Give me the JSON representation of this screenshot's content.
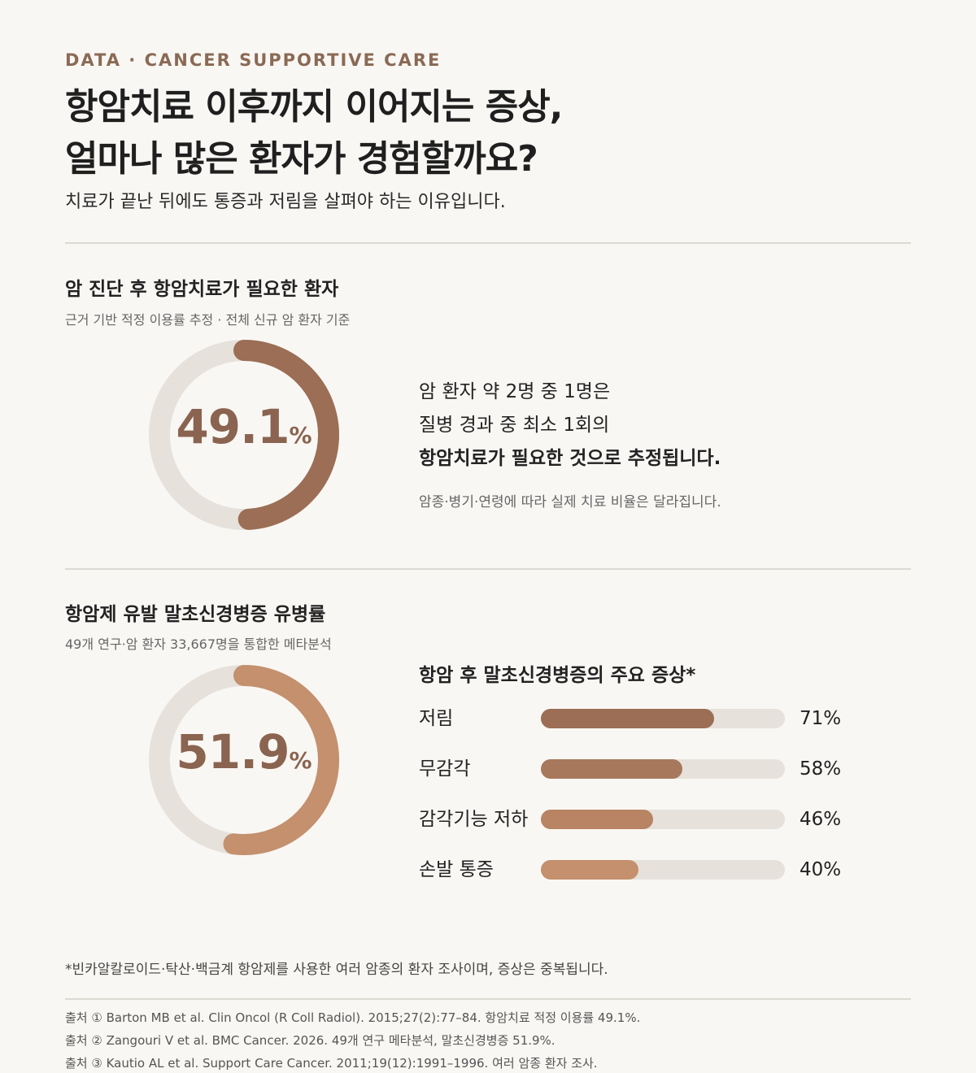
{
  "header": {
    "eyebrow": "DATA · CANCER SUPPORTIVE CARE",
    "title_line1": "항암치료 이후까지 이어지는 증상,",
    "title_line2": "얼마나 많은 환자가 경험할까요?",
    "subtitle": "치료가 끝난 뒤에도 통증과 저림을 살펴야 하는 이유입니다."
  },
  "section1": {
    "title": "암 진단 후 항암치료가 필요한 환자",
    "subtitle": "근거 기반 적정 이용률 추정 · 전체 신규 암 환자 기준",
    "value": "49.1",
    "unit": "%",
    "desc_line1": "암 환자 약 2명 중 1명은",
    "desc_line2": "질병 경과 중 최소 1회의",
    "desc_line3": "항암치료가 필요한 것으로 추정됩니다.",
    "note": "암종·병기·연령에 따라 실제 치료 비율은 달라집니다."
  },
  "section2": {
    "title": "항암제 유발 말초신경병증 유병률",
    "subtitle": "49개 연구·암 환자 33,667명을 통합한 메타분석",
    "value": "51.9",
    "unit": "%",
    "bars_title": "항암 후 말초신경병증의 주요 증상*"
  },
  "chart_data": [
    {
      "type": "pie",
      "values": [
        49.1,
        50.9
      ],
      "value_label": "49.1%",
      "colors": [
        "#9b6e55",
        "#e6e1db"
      ]
    },
    {
      "type": "pie",
      "values": [
        51.9,
        48.1
      ],
      "value_label": "51.9%",
      "colors": [
        "#c4906d",
        "#e6e1db"
      ]
    },
    {
      "type": "bar",
      "title": "항암 후 말초신경병증의 주요 증상*",
      "categories": [
        "저림",
        "무감각",
        "감각기능 저하",
        "손발 통증"
      ],
      "values": [
        71,
        58,
        46,
        40
      ],
      "value_labels": [
        "71%",
        "58%",
        "46%",
        "40%"
      ],
      "ylim": [
        0,
        100
      ],
      "colors": [
        "#9b6e55",
        "#a8785c",
        "#b88464",
        "#c4906d"
      ]
    }
  ],
  "footnote": "*빈카알칼로이드·탁산·백금계 항암제를 사용한 여러 암종의 환자 조사이며, 증상은 중복됩니다.",
  "sources": [
    "출처 ① Barton MB et al. Clin Oncol (R Coll Radiol). 2015;27(2):77–84. 항암치료 적정 이용률 49.1%.",
    "출처 ② Zangouri V et al. BMC Cancer. 2026. 49개 연구 메타분석, 말초신경병증 51.9%.",
    "출처 ③ Kautio AL et al. Support Care Cancer. 2011;19(12):1991–1996. 여러 암종 환자 조사."
  ],
  "colors": {
    "accent_dark": "#9b6e55",
    "accent_light": "#c4906d",
    "track": "#e6e1db",
    "background": "#f9f7f4"
  }
}
